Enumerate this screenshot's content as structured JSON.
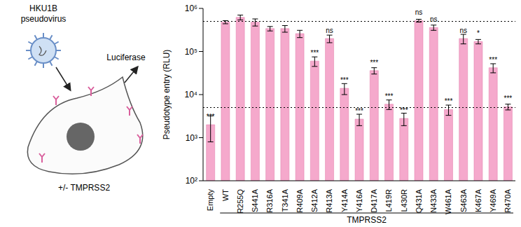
{
  "diagram": {
    "virus_label": "HKU1B pseudovirus",
    "readout_label": "Luciferase",
    "cell_label": "+/- TMPRSS2"
  },
  "chart_data": {
    "type": "bar",
    "y_label": "Pseudotype entry (RLU)",
    "x_group_label": "TMPRSS2",
    "log": "y",
    "color": "#f5a9cc",
    "categories": [
      "Empty",
      "WT",
      "R255Q",
      "S441A",
      "R316A",
      "T341A",
      "R409A",
      "S412A",
      "R413A",
      "Y414A",
      "Y416A",
      "D417A",
      "L419R",
      "L430R",
      "Q431A",
      "N433A",
      "W461A",
      "S463A",
      "K467A",
      "Y469A",
      "R470A"
    ],
    "values": [
      2000,
      480000,
      620000,
      480000,
      340000,
      340000,
      260000,
      60000,
      200000,
      14000,
      2700,
      36000,
      6000,
      2800,
      520000,
      360000,
      4500,
      200000,
      170000,
      42000,
      5200
    ],
    "errors": [
      1200,
      40000,
      80000,
      90000,
      40000,
      60000,
      50000,
      15000,
      40000,
      4000,
      800,
      6000,
      1500,
      900,
      40000,
      50000,
      1200,
      50000,
      20000,
      10000,
      800
    ],
    "significance": [
      "***",
      null,
      null,
      null,
      null,
      null,
      null,
      "***",
      "ns",
      "***",
      "***",
      "***",
      "***",
      "***",
      "ns",
      "ns",
      "***",
      "ns",
      "*",
      "***",
      "***"
    ],
    "reference_lines": [
      500000,
      5000
    ],
    "ylim": [
      100,
      1000000
    ],
    "yticks": [
      {
        "value": 100,
        "label": "10²"
      },
      {
        "value": 1000,
        "label": "10³"
      },
      {
        "value": 10000,
        "label": "10⁴"
      },
      {
        "value": 100000,
        "label": "10⁵"
      },
      {
        "value": 1000000,
        "label": "10⁶"
      }
    ]
  }
}
